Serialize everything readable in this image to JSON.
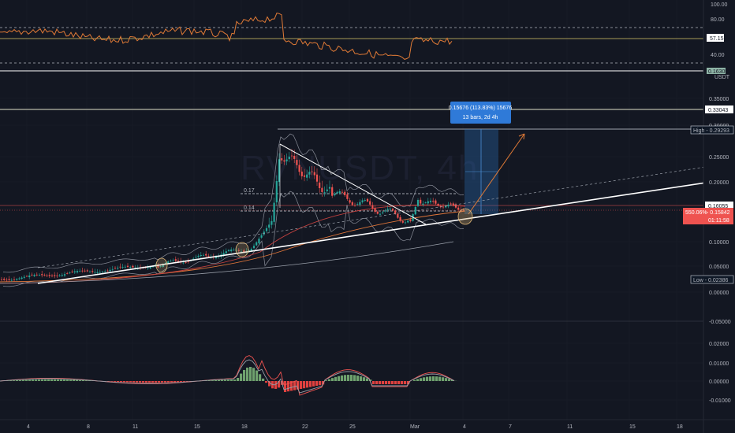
{
  "colors": {
    "background": "#131722",
    "grid": "#1e222d",
    "up": "#26a69a",
    "down": "#ef5350",
    "rsi": "#e07a36",
    "macd_up": "#6fa26e",
    "macd_down": "#e0413f",
    "trend": "#ffffff",
    "highlight": "#2a6cb5"
  },
  "watermark": "RVNUSDT, 4h",
  "price_pane": {
    "unit": "USDT",
    "ticks": [
      "0.35000",
      "0.30000",
      "0.25000",
      "0.20000",
      "0.15000",
      "0.10000",
      "0.05000",
      "0.00000",
      "-0.05000"
    ],
    "tags": [
      {
        "id": "resistance",
        "label": "0.33043"
      },
      {
        "id": "high",
        "label": "High - 0.29293"
      },
      {
        "id": "fib",
        "label": "0.16055"
      },
      {
        "id": "current_pct",
        "label": "550.06%"
      },
      {
        "id": "current",
        "label": "- 0.15842"
      },
      {
        "id": "countdown",
        "label": "01:11:58"
      },
      {
        "id": "low",
        "label": "Low - 0.02386"
      }
    ],
    "level_labels": [
      "0.17",
      "0.14"
    ],
    "measure": {
      "line1": "0.15676 (113.83%) 15676",
      "line2": "13 bars, 2d 4h"
    }
  },
  "rsi_pane": {
    "ticks": [
      "100.00",
      "80.00",
      "40.00"
    ],
    "current": "57.15",
    "tag": "0.16305"
  },
  "macd_pane": {
    "ticks": [
      "0.02000",
      "0.01000",
      "0.00000",
      "-0.01000"
    ]
  },
  "time_axis": {
    "labels": [
      "4",
      "8",
      "11",
      "15",
      "18",
      "22",
      "25",
      "Mar",
      "4",
      "7",
      "11",
      "15",
      "18"
    ]
  }
}
